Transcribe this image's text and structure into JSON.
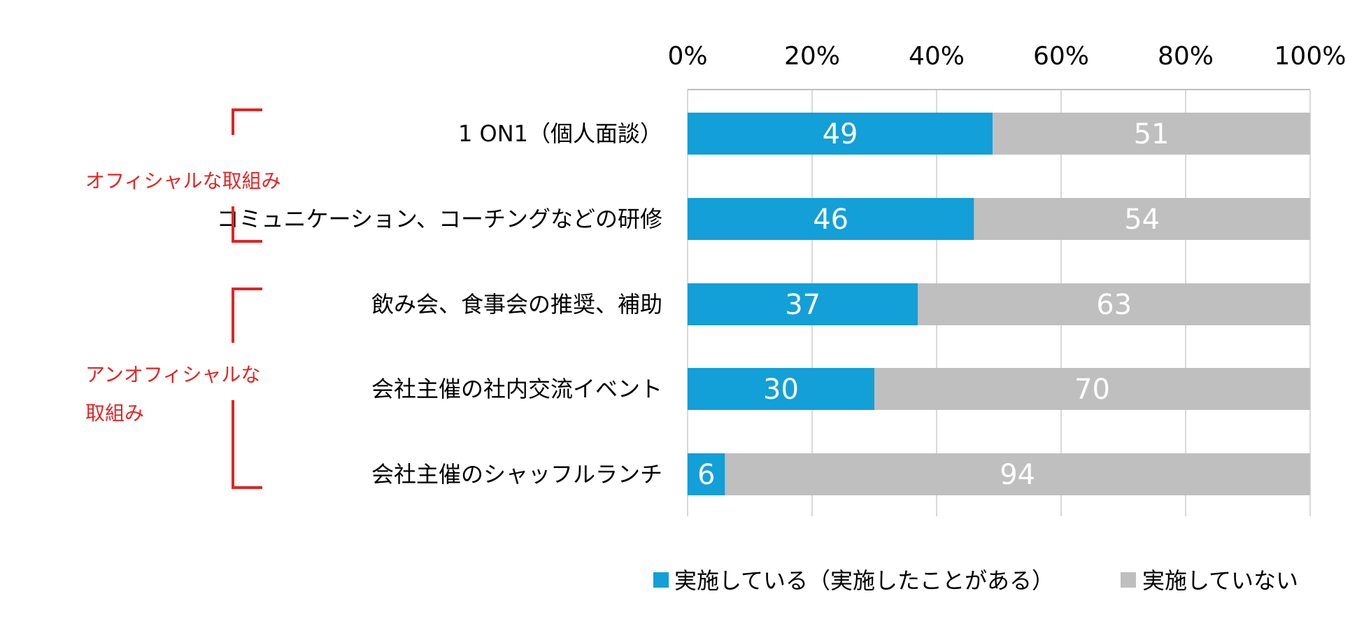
{
  "chart_data": {
    "type": "bar",
    "orientation": "horizontal",
    "stacked": true,
    "categories": [
      "1 ON1（個人面談）",
      "コミュニケーション、コーチングなどの研修",
      "飲み会、食事会の推奨、補助",
      "会社主催の社内交流イベント",
      "会社主催のシャッフルランチ"
    ],
    "series": [
      {
        "name": "実施している（実施したことがある）",
        "color": "#139fd7",
        "values": [
          49,
          46,
          37,
          30,
          6
        ]
      },
      {
        "name": "実施していない",
        "color": "#bfbfbf",
        "values": [
          51,
          54,
          63,
          70,
          94
        ]
      }
    ],
    "xlim": [
      0,
      100
    ],
    "x_ticks": [
      "0%",
      "20%",
      "40%",
      "60%",
      "80%",
      "100%"
    ],
    "x_tick_values": [
      0,
      20,
      40,
      60,
      80,
      100
    ],
    "grid": true,
    "legend_position": "bottom",
    "groups": [
      {
        "lines": [
          "オフィシャルな取組み"
        ],
        "color": "#e32424",
        "category_indices": [
          0,
          1
        ]
      },
      {
        "lines": [
          "アンオフィシャルな",
          "取組み"
        ],
        "color": "#e32424",
        "category_indices": [
          2,
          3,
          4
        ]
      }
    ]
  }
}
